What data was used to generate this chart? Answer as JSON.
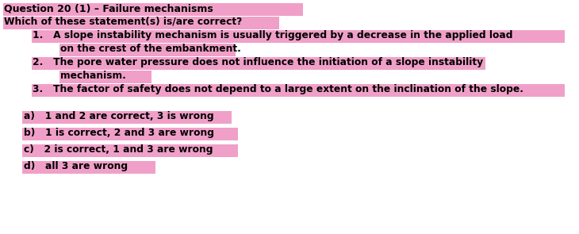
{
  "title": "Question 20 (1) – Failure mechanisms",
  "subtitle": "Which of these statement(s) is/are correct?",
  "s1_line1": "A slope instability mechanism is usually triggered by a decrease in the applied load",
  "s1_line2": "on the crest of the embankment.",
  "s2_line1": "The pore water pressure does not influence the initiation of a slope instability",
  "s2_line2": "mechanism.",
  "s3_line1": "The factor of safety does not depend to a large extent on the inclination of the slope.",
  "opt_a": "a)   1 and 2 are correct, 3 is wrong",
  "opt_b": "b)   1 is correct, 2 and 3 are wrong",
  "opt_c": "c)   2 is correct, 1 and 3 are wrong",
  "opt_d": "d)   all 3 are wrong",
  "highlight_color": "#F0A0C8",
  "background_color": "#FFFFFF",
  "text_color": "#000000",
  "title_fontsize": 9.0,
  "body_fontsize": 8.8
}
